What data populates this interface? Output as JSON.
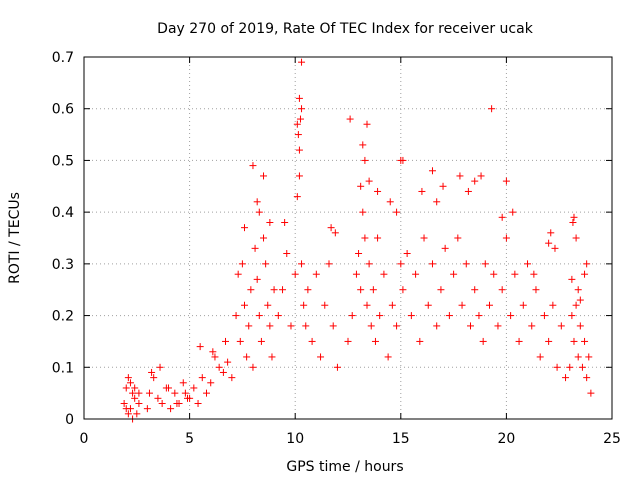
{
  "chart_data": {
    "type": "scatter",
    "title": "Day 270 of 2019, Rate Of TEC Index for receiver ucak",
    "xlabel": "GPS time / hours",
    "ylabel": "ROTI / TECUs",
    "xlim": [
      0,
      25
    ],
    "ylim": [
      0,
      0.7
    ],
    "xticks": [
      0,
      5,
      10,
      15,
      20,
      25
    ],
    "xtick_labels": [
      "0",
      "5",
      "10",
      "15",
      "20",
      "25"
    ],
    "yticks": [
      0,
      0.1,
      0.2,
      0.3,
      0.4,
      0.5,
      0.6,
      0.7
    ],
    "ytick_labels": [
      "0",
      "0.1",
      "0.2",
      "0.3",
      "0.4",
      "0.5",
      "0.6",
      "0.7"
    ],
    "grid": true,
    "marker": "+",
    "color": "#ff0000",
    "series": [
      {
        "name": "ROTI",
        "x": [
          1.9,
          2.0,
          2.1,
          2.2,
          2.3,
          2.4,
          2.5,
          2.6,
          2.0,
          2.2,
          2.4,
          2.6,
          2.1,
          2.3,
          3.0,
          3.1,
          3.3,
          3.5,
          3.7,
          3.9,
          4.1,
          4.3,
          4.5,
          4.7,
          4.9,
          3.2,
          3.6,
          4.0,
          4.4,
          4.8,
          5.0,
          5.2,
          5.4,
          5.6,
          5.8,
          6.0,
          6.2,
          6.4,
          6.6,
          6.8,
          7.0,
          5.5,
          6.1,
          6.7,
          7.2,
          7.3,
          7.4,
          7.5,
          7.6,
          7.7,
          7.8,
          7.9,
          8.0,
          8.1,
          8.2,
          8.3,
          8.4,
          8.5,
          8.6,
          8.7,
          8.8,
          8.9,
          9.0,
          8.2,
          8.5,
          8.8,
          7.6,
          8.0,
          8.3,
          9.2,
          9.4,
          9.6,
          9.8,
          10.0,
          10.1,
          10.2,
          10.3,
          10.4,
          10.5,
          10.6,
          10.8,
          11.0,
          11.2,
          11.4,
          11.6,
          11.8,
          12.0,
          10.2,
          10.3,
          10.25,
          10.15,
          10.3,
          10.2,
          10.1,
          11.7,
          11.9,
          9.5,
          12.5,
          12.7,
          12.9,
          13.0,
          13.1,
          13.2,
          13.3,
          13.4,
          13.5,
          13.6,
          13.7,
          13.8,
          13.9,
          14.0,
          14.2,
          14.4,
          14.6,
          14.8,
          15.0,
          12.6,
          13.2,
          13.4,
          13.3,
          13.5,
          13.1,
          14.5,
          14.8,
          13.9,
          15.1,
          15.3,
          15.5,
          15.7,
          15.9,
          16.1,
          16.3,
          16.5,
          16.7,
          16.9,
          17.1,
          17.3,
          17.5,
          17.7,
          17.9,
          18.1,
          18.3,
          18.5,
          18.7,
          18.9,
          15.0,
          15.1,
          16.5,
          16.7,
          17.8,
          18.2,
          18.5,
          18.8,
          17.0,
          16.0,
          19.0,
          19.2,
          19.4,
          19.6,
          19.8,
          20.0,
          20.2,
          20.4,
          20.6,
          20.8,
          21.0,
          21.2,
          21.4,
          21.6,
          21.8,
          22.0,
          22.2,
          22.4,
          22.6,
          22.8,
          19.3,
          19.8,
          20.0,
          20.3,
          21.3,
          22.0,
          22.3,
          22.1,
          23.0,
          23.1,
          23.2,
          23.3,
          23.4,
          23.5,
          23.6,
          23.7,
          23.8,
          23.9,
          24.0,
          23.15,
          23.2,
          23.5,
          23.8,
          23.1,
          23.4,
          23.7,
          23.3
        ],
        "y": [
          0.03,
          0.06,
          0.08,
          0.02,
          0.05,
          0.04,
          0.01,
          0.03,
          0.02,
          0.07,
          0.06,
          0.05,
          0.01,
          0.0,
          0.02,
          0.05,
          0.08,
          0.04,
          0.03,
          0.06,
          0.02,
          0.05,
          0.03,
          0.07,
          0.04,
          0.09,
          0.1,
          0.06,
          0.03,
          0.05,
          0.04,
          0.06,
          0.03,
          0.08,
          0.05,
          0.07,
          0.12,
          0.1,
          0.09,
          0.11,
          0.08,
          0.14,
          0.13,
          0.15,
          0.2,
          0.28,
          0.15,
          0.3,
          0.22,
          0.12,
          0.18,
          0.25,
          0.1,
          0.33,
          0.27,
          0.2,
          0.15,
          0.35,
          0.3,
          0.22,
          0.18,
          0.12,
          0.25,
          0.42,
          0.47,
          0.38,
          0.37,
          0.49,
          0.4,
          0.2,
          0.25,
          0.32,
          0.18,
          0.28,
          0.43,
          0.47,
          0.3,
          0.22,
          0.18,
          0.25,
          0.15,
          0.28,
          0.12,
          0.22,
          0.3,
          0.18,
          0.1,
          0.62,
          0.6,
          0.58,
          0.55,
          0.69,
          0.52,
          0.57,
          0.37,
          0.36,
          0.38,
          0.15,
          0.2,
          0.28,
          0.32,
          0.25,
          0.4,
          0.35,
          0.22,
          0.3,
          0.18,
          0.25,
          0.15,
          0.35,
          0.2,
          0.28,
          0.12,
          0.22,
          0.18,
          0.3,
          0.58,
          0.53,
          0.57,
          0.5,
          0.46,
          0.45,
          0.42,
          0.4,
          0.44,
          0.25,
          0.32,
          0.2,
          0.28,
          0.15,
          0.35,
          0.22,
          0.3,
          0.18,
          0.25,
          0.33,
          0.2,
          0.28,
          0.35,
          0.22,
          0.3,
          0.18,
          0.25,
          0.2,
          0.15,
          0.5,
          0.5,
          0.48,
          0.42,
          0.47,
          0.44,
          0.46,
          0.47,
          0.45,
          0.44,
          0.3,
          0.22,
          0.28,
          0.18,
          0.25,
          0.35,
          0.2,
          0.28,
          0.15,
          0.22,
          0.3,
          0.18,
          0.25,
          0.12,
          0.2,
          0.15,
          0.22,
          0.1,
          0.18,
          0.08,
          0.6,
          0.39,
          0.46,
          0.4,
          0.28,
          0.34,
          0.33,
          0.36,
          0.1,
          0.2,
          0.15,
          0.22,
          0.12,
          0.18,
          0.1,
          0.15,
          0.08,
          0.12,
          0.05,
          0.38,
          0.39,
          0.23,
          0.3,
          0.27,
          0.25,
          0.28,
          0.35
        ]
      }
    ]
  }
}
